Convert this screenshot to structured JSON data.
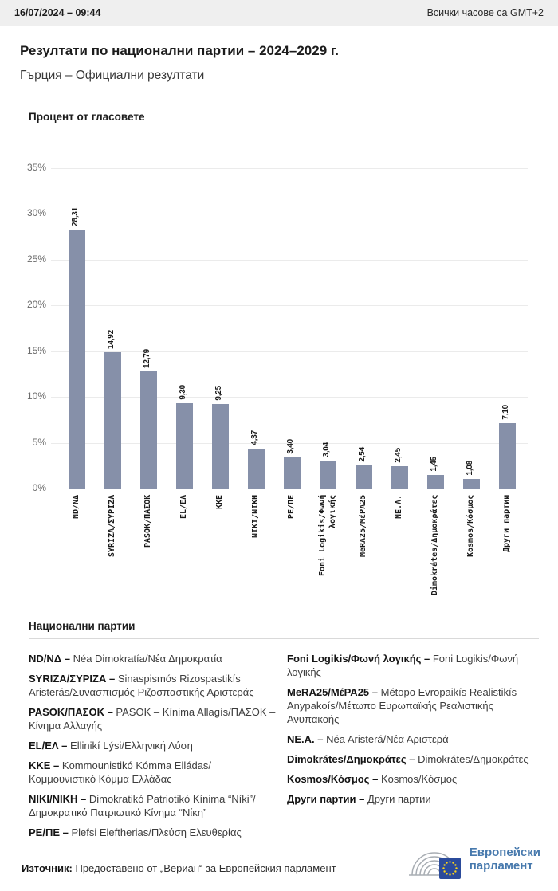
{
  "topbar": {
    "datetime": "16/07/2024 – 09:44",
    "timezone_note": "Всички часове са GMT+2"
  },
  "header": {
    "title": "Резултати по национални партии – 2024–2029 г.",
    "subtitle": "Гърция – Официални резултати"
  },
  "chart_data": {
    "type": "bar",
    "title": "Процент от гласовете",
    "categories": [
      "ND/ΝΔ",
      "SYRIZA/ΣΥΡΙΖΑ",
      "PASOK/ΠΑΣΟΚ",
      "EL/ΕΛ",
      "KKE",
      "NIKI/ΝΙΚΗ",
      "PE/ΠΕ",
      "Foni Logikis/Φωνή λογικής",
      "MeRA25/ΜέΡΑ25",
      "NE.A.",
      "Dimokrátes/Δημοκράτες",
      "Kosmos/Κόσμος",
      "Други партии"
    ],
    "values": [
      28.31,
      14.92,
      12.79,
      9.3,
      9.25,
      4.37,
      3.4,
      3.04,
      2.54,
      2.45,
      1.45,
      1.08,
      7.1
    ],
    "value_labels": [
      "28,31",
      "14,92",
      "12,79",
      "9,30",
      "9,25",
      "4,37",
      "3,40",
      "3,04",
      "2,54",
      "2,45",
      "1,45",
      "1,08",
      "7,10"
    ],
    "ylabel": "Процент от гласовете",
    "ylim": [
      0,
      35
    ],
    "yticks": [
      "35%",
      "30%",
      "25%",
      "20%",
      "15%",
      "10%",
      "5%",
      "0%"
    ],
    "grid": true,
    "legend_position": "none",
    "bar_color": "#8690A9"
  },
  "legend": {
    "heading": "Национални партии",
    "left": [
      {
        "term": "ND/ΝΔ –",
        "desc": "Néa Dimokratía/Νέα Δημοκρατία"
      },
      {
        "term": "SYRIZA/ΣΥΡΙΖΑ –",
        "desc": "Sinaspismós Rizospastikís Aristerás/Συνασπισμός Ριζοσπαστικής Αριστεράς"
      },
      {
        "term": "PASOK/ΠΑΣΟΚ –",
        "desc": "PASOK – Kínima Allagís/ΠΑΣΟΚ – Κίνημα Αλλαγής"
      },
      {
        "term": "EL/ΕΛ –",
        "desc": "Ellinikí Lýsi/Ελληνική Λύση"
      },
      {
        "term": "KKE –",
        "desc": "Kommounistikó Kómma Elládas/Κομμουνιστικό Κόμμα Ελλάδας"
      },
      {
        "term": "NIKI/ΝΙΚΗ –",
        "desc": "Dimokratikó Patriotikó Kínima “Níki”/Δημοκρατικό Πατριωτικό Κίνημα “Νίκη”"
      },
      {
        "term": "PE/ΠΕ –",
        "desc": "Plefsi Eleftherias/Πλεύση Ελευθερίας"
      }
    ],
    "right": [
      {
        "term": "Foni Logikis/Φωνή λογικής –",
        "desc": "Foni Logikis/Φωνή λογικής"
      },
      {
        "term": "MeRA25/ΜέΡΑ25 –",
        "desc": "Métopo Evropaikís Realistikís Anypakoís/Μέτωπο Ευρωπαϊκής Ρεαλιστικής Ανυπακοής"
      },
      {
        "term": "NE.A. –",
        "desc": "Néa Aristerá/Νέα Αριστερά"
      },
      {
        "term": "Dimokrátes/Δημοκράτες –",
        "desc": "Dimokrátes/Δημοκράτες"
      },
      {
        "term": "Kosmos/Κόσμος –",
        "desc": "Kosmos/Κόσμος"
      },
      {
        "term": "Други партии –",
        "desc": "Други партии"
      }
    ]
  },
  "footer": {
    "source_label": "Източник:",
    "source_text": "Предоставено от „Вериан“ за Европейския парламент",
    "logo_line1": "Европейски",
    "logo_line2": "парламент"
  }
}
